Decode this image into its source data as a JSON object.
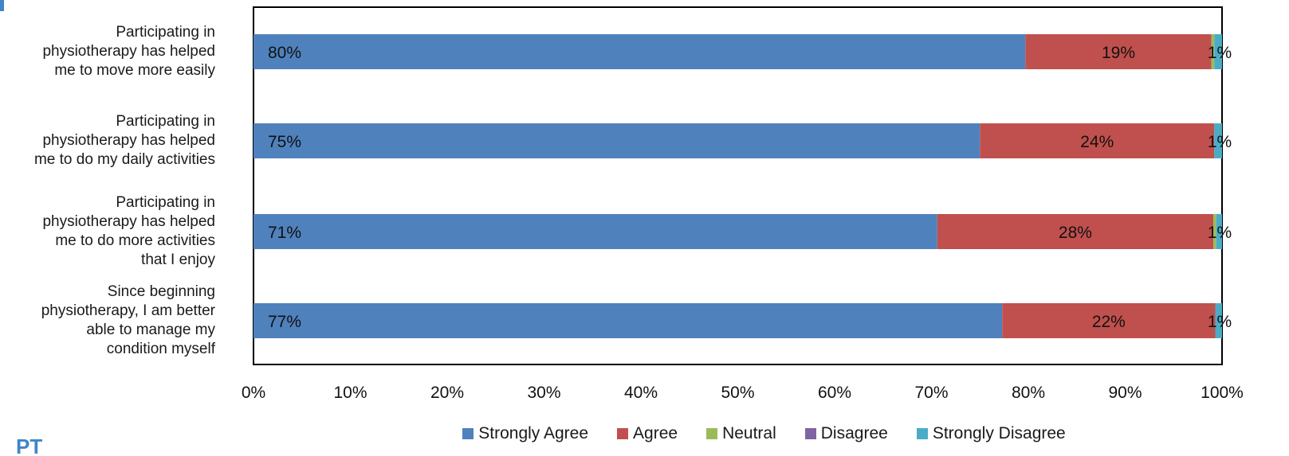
{
  "corner_text": "PT",
  "colors": {
    "strongly_agree": "#4F81BD",
    "agree": "#C0504D",
    "neutral": "#9BBB59",
    "disagree": "#8064A2",
    "strongly_disagree": "#4BACC6",
    "edge_blue": "#3F86C7"
  },
  "chart_data": {
    "type": "bar",
    "orientation": "horizontal",
    "stacked": "percent",
    "categories": [
      "Participating in\nphysiotherapy has helped\nme to move more easily",
      "Participating in\nphysiotherapy has helped\nme to do my daily activities",
      "Participating in\nphysiotherapy has helped\nme to do more activities\nthat I enjoy",
      "Since beginning\nphysiotherapy, I am better\nable to manage my\ncondition myself"
    ],
    "series": [
      {
        "name": "Strongly Agree",
        "color": "#4F81BD",
        "values": [
          79.7,
          75.0,
          70.6,
          77.3
        ]
      },
      {
        "name": "Agree",
        "color": "#C0504D",
        "values": [
          19.2,
          24.2,
          28.5,
          22.0
        ]
      },
      {
        "name": "Neutral",
        "color": "#9BBB59",
        "values": [
          0.3,
          0.0,
          0.3,
          0.0
        ]
      },
      {
        "name": "Disagree",
        "color": "#8064A2",
        "values": [
          0.0,
          0.0,
          0.0,
          0.0
        ]
      },
      {
        "name": "Strongly Disagree",
        "color": "#4BACC6",
        "values": [
          0.8,
          0.8,
          0.6,
          0.7
        ]
      }
    ],
    "data_labels": [
      [
        "80%",
        "19%",
        "",
        "",
        "1%"
      ],
      [
        "75%",
        "24%",
        "",
        "",
        "1%"
      ],
      [
        "71%",
        "28%",
        "",
        "",
        "1%"
      ],
      [
        "77%",
        "22%",
        "",
        "",
        "1%"
      ]
    ],
    "xlim": [
      0,
      100
    ],
    "x_ticks": [
      "0%",
      "10%",
      "20%",
      "30%",
      "40%",
      "50%",
      "60%",
      "70%",
      "80%",
      "90%",
      "100%"
    ],
    "legend": [
      "Strongly Agree",
      "Agree",
      "Neutral",
      "Disagree",
      "Strongly Disagree"
    ],
    "legend_position": "bottom",
    "grid": false,
    "title": "",
    "xlabel": "",
    "ylabel": ""
  }
}
